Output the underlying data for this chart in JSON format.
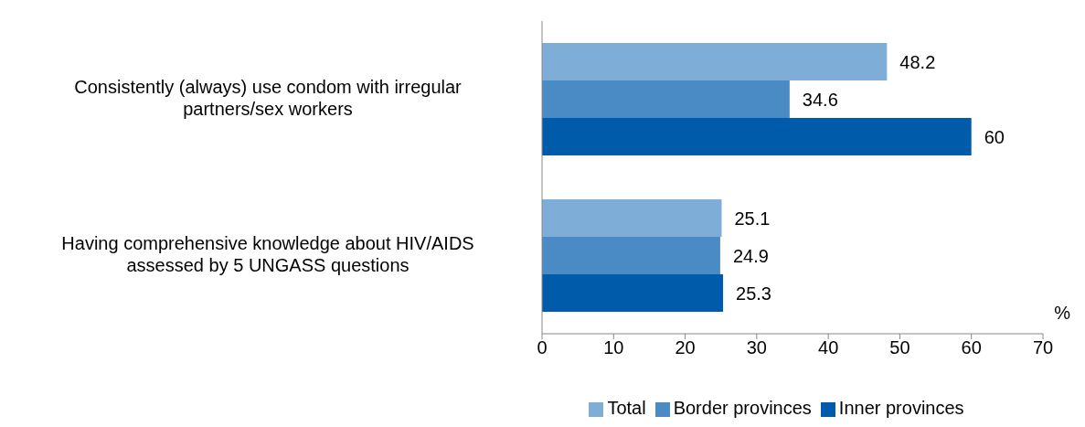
{
  "chart_data": {
    "type": "bar",
    "orientation": "horizontal",
    "xlabel": "%",
    "categories": [
      "Consistently (always) use condom with irregular partners/sex workers",
      "Having comprehensive knowledge about HIV/AIDS assessed by 5 UNGASS questions"
    ],
    "series": [
      {
        "name": "Total",
        "color": "#7eadd8",
        "values": [
          48.2,
          25.1
        ]
      },
      {
        "name": "Border provinces",
        "color": "#4a8bc6",
        "values": [
          34.6,
          24.9
        ]
      },
      {
        "name": "Inner provinces",
        "color": "#005bab",
        "values": [
          60,
          25.3
        ]
      }
    ],
    "xlim": [
      0,
      70
    ],
    "xticks": [
      0,
      10,
      20,
      30,
      40,
      50,
      60,
      70
    ],
    "grid": false,
    "legend": "bottom",
    "data_labels": true
  }
}
